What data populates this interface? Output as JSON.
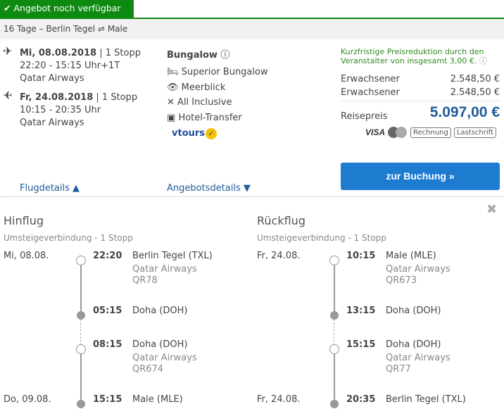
{
  "status": "Angebot noch verfügbar",
  "route": {
    "duration": "16 Tage",
    "sep": "–",
    "from": "Berlin Tegel",
    "arrow": "⇌",
    "to": "Male"
  },
  "summary": {
    "outbound": {
      "date": "Mi, 08.08.2018",
      "stops": "| 1 Stopp",
      "times": "22:20 - 15:15 Uhr+1T",
      "airline": "Qatar Airways"
    },
    "return": {
      "date": "Fr, 24.08.2018",
      "stops": "| 1 Stopp",
      "times": "10:15 - 20:35 Uhr",
      "airline": "Qatar Airways"
    }
  },
  "room": {
    "title": "Bungalow",
    "features": [
      "Superior Bungalow",
      "Meerblick",
      "All Inclusive",
      "Hotel-Transfer"
    ],
    "operator": "vtours"
  },
  "price": {
    "notice": "Kurzfristige Preisreduktion durch den Veranstalter von insgesamt 3,00 €.",
    "rows": [
      {
        "label": "Erwachsener",
        "value": "2.548,50 €"
      },
      {
        "label": "Erwachsener",
        "value": "2.548,50 €"
      }
    ],
    "total_label": "Reisepreis",
    "total": "5.097,00 €",
    "payments": [
      "VISA",
      "Rechnung",
      "Lastschrift"
    ],
    "book": "zur Buchung »"
  },
  "links": {
    "flight": "Flugdetails",
    "offer": "Angebotsdetails"
  },
  "details": [
    {
      "title": "Hinflug",
      "sub": "Umsteigeverbindung - 1 Stopp",
      "stops": [
        {
          "date": "Mi, 08.08.",
          "time": "22:20",
          "place": "Berlin Tegel (TXL)",
          "airline": "Qatar Airways",
          "flight": "QR78"
        },
        {
          "date": "",
          "time": "05:15",
          "place": "Doha (DOH)"
        },
        {
          "date": "",
          "time": "08:15",
          "place": "Doha (DOH)",
          "airline": "Qatar Airways",
          "flight": "QR674"
        },
        {
          "date": "Do, 09.08.",
          "time": "15:15",
          "place": "Male (MLE)"
        }
      ]
    },
    {
      "title": "Rückflug",
      "sub": "Umsteigeverbindung - 1 Stopp",
      "stops": [
        {
          "date": "Fr, 24.08.",
          "time": "10:15",
          "place": "Male (MLE)",
          "airline": "Qatar Airways",
          "flight": "QR673"
        },
        {
          "date": "",
          "time": "13:15",
          "place": "Doha (DOH)"
        },
        {
          "date": "",
          "time": "15:15",
          "place": "Doha (DOH)",
          "airline": "Qatar Airways",
          "flight": "QR77"
        },
        {
          "date": "Fr, 24.08.",
          "time": "20:35",
          "place": "Berlin Tegel (TXL)"
        }
      ]
    }
  ],
  "colors": {
    "green": "#0e8a10",
    "blue": "#1d7bd0",
    "price": "#1f5c99"
  }
}
